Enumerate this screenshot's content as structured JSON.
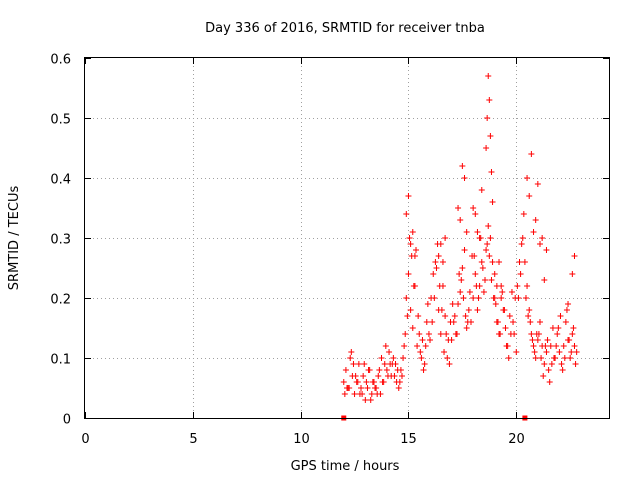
{
  "chart_data": {
    "type": "scatter",
    "title": "Day 336 of 2016, SRMTID for receiver tnba",
    "xlabel": "GPS time / hours",
    "ylabel": "SRMTID / TECUs",
    "xlim": [
      0,
      24.3
    ],
    "ylim": [
      0,
      0.6
    ],
    "xticks": [
      0,
      5,
      10,
      15,
      20
    ],
    "yticks": [
      0,
      0.1,
      0.2,
      0.3,
      0.4,
      0.5,
      0.6
    ],
    "grid": true,
    "marker": "+",
    "color": "#ff0000",
    "markers_on_axis": [
      12.0,
      20.4
    ],
    "series": [
      {
        "name": "SRMTID",
        "x": [
          12.0,
          12.1,
          12.2,
          12.3,
          12.4,
          12.5,
          12.6,
          12.7,
          12.8,
          12.9,
          13.0,
          13.1,
          13.2,
          13.3,
          13.4,
          13.5,
          13.6,
          13.7,
          13.8,
          13.9,
          14.0,
          14.1,
          14.2,
          14.3,
          14.4,
          14.5,
          14.6,
          14.7,
          14.8,
          14.9,
          15.0,
          15.1,
          15.2,
          15.3,
          15.4,
          15.5,
          15.6,
          15.7,
          15.8,
          15.9,
          16.0,
          16.1,
          16.2,
          16.3,
          16.4,
          16.5,
          16.6,
          16.7,
          16.8,
          16.9,
          17.0,
          17.1,
          17.2,
          17.3,
          17.4,
          17.5,
          17.6,
          17.7,
          17.8,
          17.9,
          18.0,
          18.1,
          18.2,
          18.3,
          18.4,
          18.5,
          18.6,
          18.7,
          18.8,
          18.9,
          19.0,
          19.1,
          19.2,
          19.3,
          19.4,
          19.5,
          19.6,
          19.7,
          19.8,
          19.9,
          20.0,
          20.1,
          20.2,
          20.3,
          20.4,
          20.5,
          20.6,
          20.7,
          20.8,
          20.9,
          21.0,
          21.1,
          21.2,
          21.3,
          21.4,
          21.5,
          21.6,
          21.7,
          21.8,
          21.9,
          22.0,
          22.1,
          22.2,
          22.3,
          22.4,
          22.5,
          22.6,
          22.7,
          22.8,
          12.05,
          12.25,
          12.45,
          12.65,
          12.85,
          13.05,
          13.25,
          13.45,
          13.65,
          13.85,
          14.05,
          14.25,
          14.45,
          14.65,
          14.85,
          15.05,
          15.25,
          15.45,
          15.65,
          15.85,
          16.05,
          16.25,
          16.45,
          16.65,
          16.85,
          17.05,
          17.25,
          17.45,
          17.65,
          17.85,
          18.05,
          18.25,
          18.45,
          18.65,
          18.85,
          19.05,
          19.25,
          19.45,
          19.65,
          19.85,
          20.05,
          20.25,
          20.45,
          20.65,
          20.85,
          21.05,
          21.25,
          21.45,
          21.65,
          21.85,
          22.05,
          22.25,
          22.45,
          22.65,
          12.15,
          12.35,
          12.55,
          12.75,
          12.95,
          13.15,
          13.35,
          13.55,
          13.75,
          13.95,
          14.15,
          14.35,
          14.55,
          14.75,
          14.95,
          15.15,
          15.35,
          15.55,
          15.75,
          15.95,
          16.15,
          16.35,
          16.55,
          16.75,
          16.95,
          17.15,
          17.35,
          17.55,
          17.75,
          17.95,
          18.15,
          18.35,
          18.55,
          18.75,
          18.95,
          19.15,
          19.35,
          19.55,
          19.75,
          19.95,
          20.15,
          20.35,
          20.55,
          20.75,
          20.95,
          21.15,
          21.35,
          21.55,
          21.75,
          21.95,
          22.15,
          22.35,
          22.55,
          22.75,
          14.9,
          15.0,
          15.1,
          15.2,
          15.3,
          16.4,
          16.5,
          16.6,
          16.7,
          17.3,
          17.4,
          17.5,
          17.6,
          17.7,
          18.0,
          18.1,
          18.2,
          18.3,
          18.4,
          18.6,
          18.65,
          18.7,
          18.75,
          18.8,
          18.85,
          18.9,
          19.0,
          19.1,
          19.2,
          19.3,
          20.5,
          20.6,
          20.7,
          20.8,
          20.9,
          21.0,
          21.1,
          21.2,
          21.3,
          21.4,
          22.4,
          22.6,
          22.7
        ],
        "y": [
          0.06,
          0.08,
          0.05,
          0.1,
          0.07,
          0.04,
          0.06,
          0.09,
          0.05,
          0.07,
          0.03,
          0.05,
          0.08,
          0.04,
          0.06,
          0.05,
          0.07,
          0.04,
          0.06,
          0.09,
          0.08,
          0.11,
          0.07,
          0.1,
          0.09,
          0.08,
          0.06,
          0.07,
          0.12,
          0.2,
          0.24,
          0.18,
          0.15,
          0.22,
          0.12,
          0.14,
          0.1,
          0.08,
          0.12,
          0.19,
          0.13,
          0.16,
          0.2,
          0.25,
          0.18,
          0.14,
          0.22,
          0.17,
          0.1,
          0.09,
          0.13,
          0.16,
          0.14,
          0.19,
          0.21,
          0.25,
          0.28,
          0.15,
          0.18,
          0.16,
          0.2,
          0.24,
          0.18,
          0.22,
          0.26,
          0.21,
          0.28,
          0.32,
          0.3,
          0.26,
          0.2,
          0.16,
          0.14,
          0.22,
          0.18,
          0.15,
          0.12,
          0.17,
          0.21,
          0.14,
          0.11,
          0.2,
          0.24,
          0.3,
          0.26,
          0.22,
          0.18,
          0.14,
          0.12,
          0.1,
          0.13,
          0.16,
          0.12,
          0.09,
          0.11,
          0.08,
          0.12,
          0.15,
          0.1,
          0.14,
          0.11,
          0.09,
          0.12,
          0.16,
          0.13,
          0.1,
          0.14,
          0.12,
          0.11,
          0.04,
          0.05,
          0.09,
          0.06,
          0.04,
          0.06,
          0.03,
          0.05,
          0.08,
          0.06,
          0.07,
          0.09,
          0.06,
          0.08,
          0.14,
          0.3,
          0.22,
          0.17,
          0.13,
          0.16,
          0.2,
          0.26,
          0.22,
          0.11,
          0.13,
          0.19,
          0.14,
          0.23,
          0.17,
          0.21,
          0.27,
          0.2,
          0.25,
          0.29,
          0.23,
          0.19,
          0.14,
          0.18,
          0.1,
          0.16,
          0.22,
          0.29,
          0.2,
          0.16,
          0.11,
          0.14,
          0.07,
          0.13,
          0.09,
          0.12,
          0.17,
          0.1,
          0.13,
          0.15,
          0.05,
          0.11,
          0.07,
          0.04,
          0.09,
          0.08,
          0.06,
          0.04,
          0.1,
          0.12,
          0.09,
          0.07,
          0.05,
          0.1,
          0.17,
          0.27,
          0.28,
          0.11,
          0.09,
          0.14,
          0.24,
          0.29,
          0.18,
          0.14,
          0.16,
          0.17,
          0.24,
          0.2,
          0.16,
          0.27,
          0.22,
          0.3,
          0.23,
          0.27,
          0.2,
          0.16,
          0.21,
          0.12,
          0.14,
          0.2,
          0.26,
          0.34,
          0.17,
          0.13,
          0.14,
          0.1,
          0.12,
          0.06,
          0.1,
          0.15,
          0.08,
          0.18,
          0.11,
          0.09,
          0.34,
          0.37,
          0.29,
          0.31,
          0.27,
          0.27,
          0.29,
          0.26,
          0.3,
          0.35,
          0.33,
          0.42,
          0.4,
          0.31,
          0.35,
          0.34,
          0.31,
          0.3,
          0.38,
          0.45,
          0.5,
          0.57,
          0.53,
          0.47,
          0.41,
          0.36,
          0.24,
          0.22,
          0.26,
          0.2,
          0.4,
          0.37,
          0.44,
          0.31,
          0.33,
          0.39,
          0.29,
          0.3,
          0.23,
          0.28,
          0.19,
          0.24,
          0.27
        ]
      }
    ]
  }
}
